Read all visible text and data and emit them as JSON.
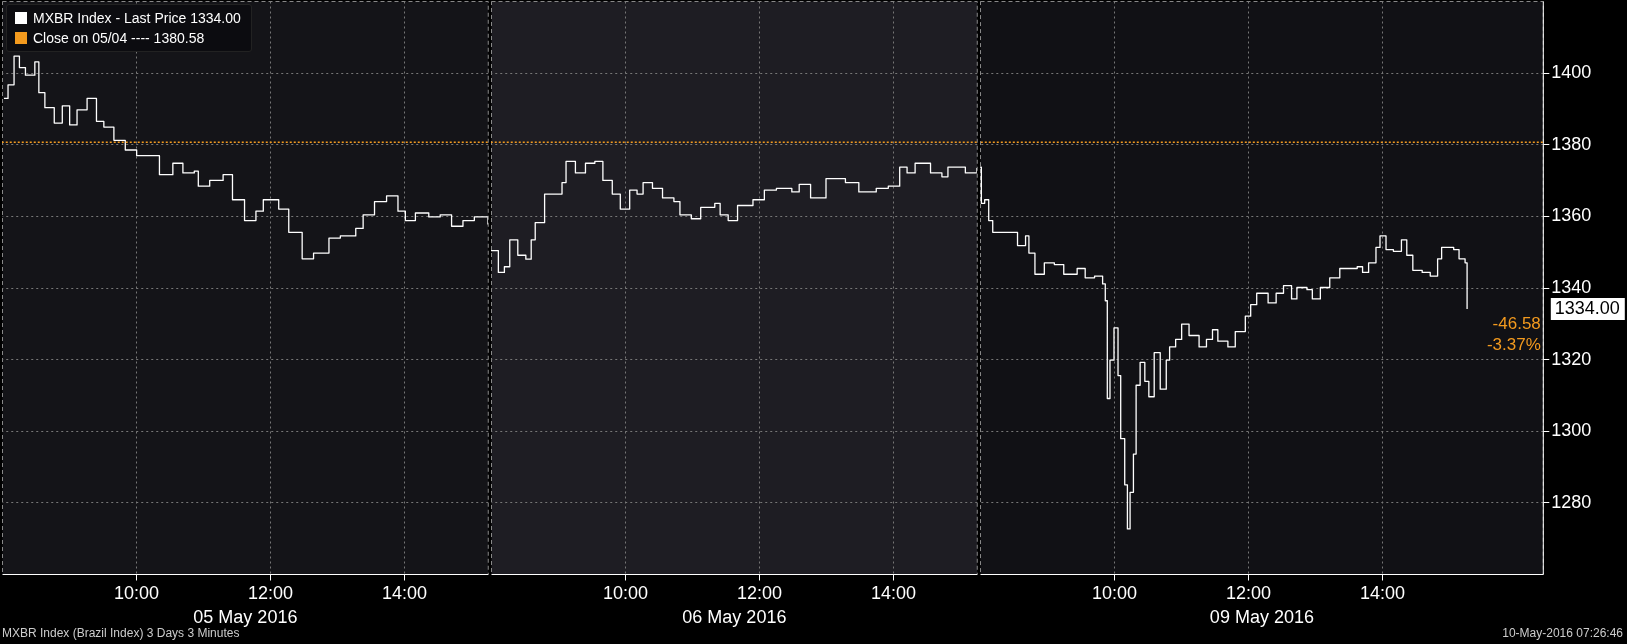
{
  "chart_data": [
    {
      "type": "step",
      "xlabel": "05 May 2016",
      "grid": true,
      "legend": "top left",
      "tick_labels": "x",
      "xlim": [
        8,
        15.25
      ],
      "xticks": [
        {
          "value": 10,
          "label": "10:00"
        },
        {
          "value": 12,
          "label": "12:00"
        },
        {
          "value": 14,
          "label": "14:00"
        }
      ],
      "ylim": [
        1260,
        1420
      ],
      "yticks": [
        1280,
        1300,
        1320,
        1340,
        1360,
        1380,
        1400
      ],
      "ref_lines": [
        {
          "axis": "y",
          "value": 1380.58,
          "label": "Close on 05/04 ----   1380.58",
          "color": "#f39a1e",
          "line_style": "dotted"
        }
      ],
      "annotations": [
        "MXBR Index (Brazil Index) 3 Days 3 Minutes",
        "10-May-2016 07:26:46"
      ],
      "x": [
        8.03,
        8.09,
        8.18,
        8.26,
        8.35,
        8.49,
        8.55,
        8.64,
        8.78,
        8.9,
        9.01,
        9.12,
        9.27,
        9.41,
        9.52,
        9.67,
        9.84,
        10.01,
        10.18,
        10.35,
        10.55,
        10.7,
        10.87,
        10.93,
        11.1,
        11.3,
        11.44,
        11.62,
        11.79,
        11.9,
        12.13,
        12.28,
        12.48,
        12.65,
        12.88,
        13.05,
        13.28,
        13.39,
        13.56,
        13.74,
        13.91,
        14.02,
        14.17,
        14.37,
        14.54,
        14.71,
        14.88,
        15.05,
        15.25
      ],
      "series": [
        {
          "name": "MXBR Index - Last Price 1334.00",
          "color": "#ffffff",
          "values": [
            1392.8,
            1396.6,
            1404.6,
            1401.4,
            1399.3,
            1403,
            1394.4,
            1390.2,
            1385.9,
            1390.7,
            1385.4,
            1389.6,
            1392.8,
            1386.4,
            1384.8,
            1381.1,
            1378.4,
            1376.8,
            1376.8,
            1371.5,
            1374.7,
            1372,
            1372.5,
            1368.3,
            1369.9,
            1371.5,
            1364.5,
            1358.7,
            1361.3,
            1364.5,
            1361.9,
            1355.4,
            1348,
            1349.6,
            1353.8,
            1354.4,
            1356.5,
            1360.3,
            1364,
            1365.6,
            1361.3,
            1358.7,
            1360.8,
            1359.7,
            1360.3,
            1357.1,
            1358.7,
            1359.7,
            1357.6
          ]
        }
      ]
    },
    {
      "type": "step",
      "xlabel": "06 May 2016",
      "grid": true,
      "tick_labels": "x",
      "xlim": [
        8,
        15.25
      ],
      "xticks": [
        {
          "value": 10,
          "label": "10:00"
        },
        {
          "value": 12,
          "label": "12:00"
        },
        {
          "value": 14,
          "label": "14:00"
        }
      ],
      "ylim": [
        1260,
        1420
      ],
      "yticks": [
        1280,
        1300,
        1320,
        1340,
        1360,
        1380,
        1400
      ],
      "ref_lines": [
        {
          "axis": "y",
          "value": 1380.58,
          "color": "#f39a1e",
          "line_style": "dotted"
        }
      ],
      "x": [
        8.0,
        8.11,
        8.2,
        8.28,
        8.4,
        8.52,
        8.6,
        8.66,
        8.8,
        8.95,
        9.06,
        9.12,
        9.26,
        9.41,
        9.55,
        9.67,
        9.81,
        9.93,
        10.07,
        10.18,
        10.27,
        10.41,
        10.56,
        10.73,
        10.82,
        10.99,
        11.13,
        11.34,
        11.42,
        11.54,
        11.68,
        11.91,
        12.08,
        12.26,
        12.49,
        12.6,
        12.77,
        13.0,
        13.29,
        13.49,
        13.75,
        13.93,
        14.1,
        14.21,
        14.33,
        14.56,
        14.73,
        14.82,
        15.08,
        15.25
      ],
      "series": [
        {
          "color": "#ffffff",
          "values": [
            1350.3,
            1344.2,
            1345.8,
            1353.3,
            1349,
            1347.9,
            1353.3,
            1358.1,
            1366.1,
            1366.1,
            1369.3,
            1375.2,
            1372,
            1374.7,
            1375.2,
            1369.9,
            1366.1,
            1361.9,
            1367.2,
            1366.1,
            1369.3,
            1367.7,
            1365,
            1364,
            1360.3,
            1359.2,
            1362.4,
            1363.5,
            1360.3,
            1358.7,
            1362.9,
            1364.5,
            1367.2,
            1367.7,
            1366.7,
            1368.8,
            1365,
            1370.4,
            1369.3,
            1366.7,
            1367.7,
            1368.3,
            1373.6,
            1372,
            1374.7,
            1372,
            1370.9,
            1373.6,
            1372,
            1373.4
          ]
        }
      ]
    },
    {
      "type": "step",
      "xlabel": "09 May 2016",
      "grid": true,
      "xlim": [
        8,
        16.4
      ],
      "xticks": [
        {
          "value": 10,
          "label": "10:00"
        },
        {
          "value": 12,
          "label": "12:00"
        },
        {
          "value": 14,
          "label": "14:00"
        }
      ],
      "ylim": [
        1260,
        1420
      ],
      "yticks": [
        1280,
        1300,
        1320,
        1340,
        1360,
        1380,
        1400
      ],
      "ref_lines": [
        {
          "axis": "y",
          "value": 1380.58,
          "color": "#f39a1e",
          "line_style": "dotted"
        }
      ],
      "annotations": [
        "1334.00",
        "-46.58",
        "-3.37%"
      ],
      "x": [
        8.0,
        8.02,
        8.07,
        8.13,
        8.19,
        8.33,
        8.47,
        8.56,
        8.68,
        8.73,
        8.82,
        8.96,
        9.11,
        9.25,
        9.45,
        9.57,
        9.71,
        9.83,
        9.87,
        9.9,
        9.94,
        10.0,
        10.06,
        10.1,
        10.16,
        10.2,
        10.24,
        10.29,
        10.33,
        10.39,
        10.46,
        10.52,
        10.6,
        10.69,
        10.78,
        10.83,
        10.92,
        11.01,
        11.12,
        11.27,
        11.38,
        11.47,
        11.55,
        11.7,
        11.81,
        11.96,
        12.04,
        12.13,
        12.3,
        12.42,
        12.53,
        12.65,
        12.73,
        12.88,
        12.96,
        13.08,
        13.22,
        13.37,
        13.51,
        13.63,
        13.71,
        13.8,
        13.91,
        13.97,
        14.06,
        14.17,
        14.29,
        14.37,
        14.46,
        14.6,
        14.72,
        14.83,
        14.89,
        15.07,
        15.15,
        15.24,
        15.27
      ],
      "series": [
        {
          "color": "#ffffff",
          "values": [
            1373.6,
            1363.5,
            1364.5,
            1358.7,
            1355.4,
            1355.4,
            1355.4,
            1351.7,
            1354.4,
            1349.6,
            1343.7,
            1346.9,
            1346.4,
            1343.7,
            1345.3,
            1342.7,
            1343.2,
            1341,
            1336.3,
            1309,
            1319.7,
            1328.7,
            1315.4,
            1297.8,
            1284.9,
            1272.6,
            1282.8,
            1293.5,
            1312.7,
            1319.1,
            1313.8,
            1309.5,
            1321.8,
            1311.6,
            1319.7,
            1323.4,
            1325.5,
            1329.8,
            1326.6,
            1323.4,
            1325.5,
            1328.2,
            1325,
            1323.4,
            1327.7,
            1332,
            1335.2,
            1338.4,
            1335.7,
            1338.4,
            1340.5,
            1336.8,
            1340,
            1339.4,
            1336.8,
            1340,
            1342.7,
            1345.3,
            1345.3,
            1345.8,
            1344.2,
            1346.9,
            1351.2,
            1354.4,
            1350.6,
            1350.1,
            1353.3,
            1349,
            1344.8,
            1344.2,
            1343.2,
            1348,
            1351.2,
            1350.6,
            1348,
            1346.9,
            1334
          ]
        }
      ]
    }
  ]
}
